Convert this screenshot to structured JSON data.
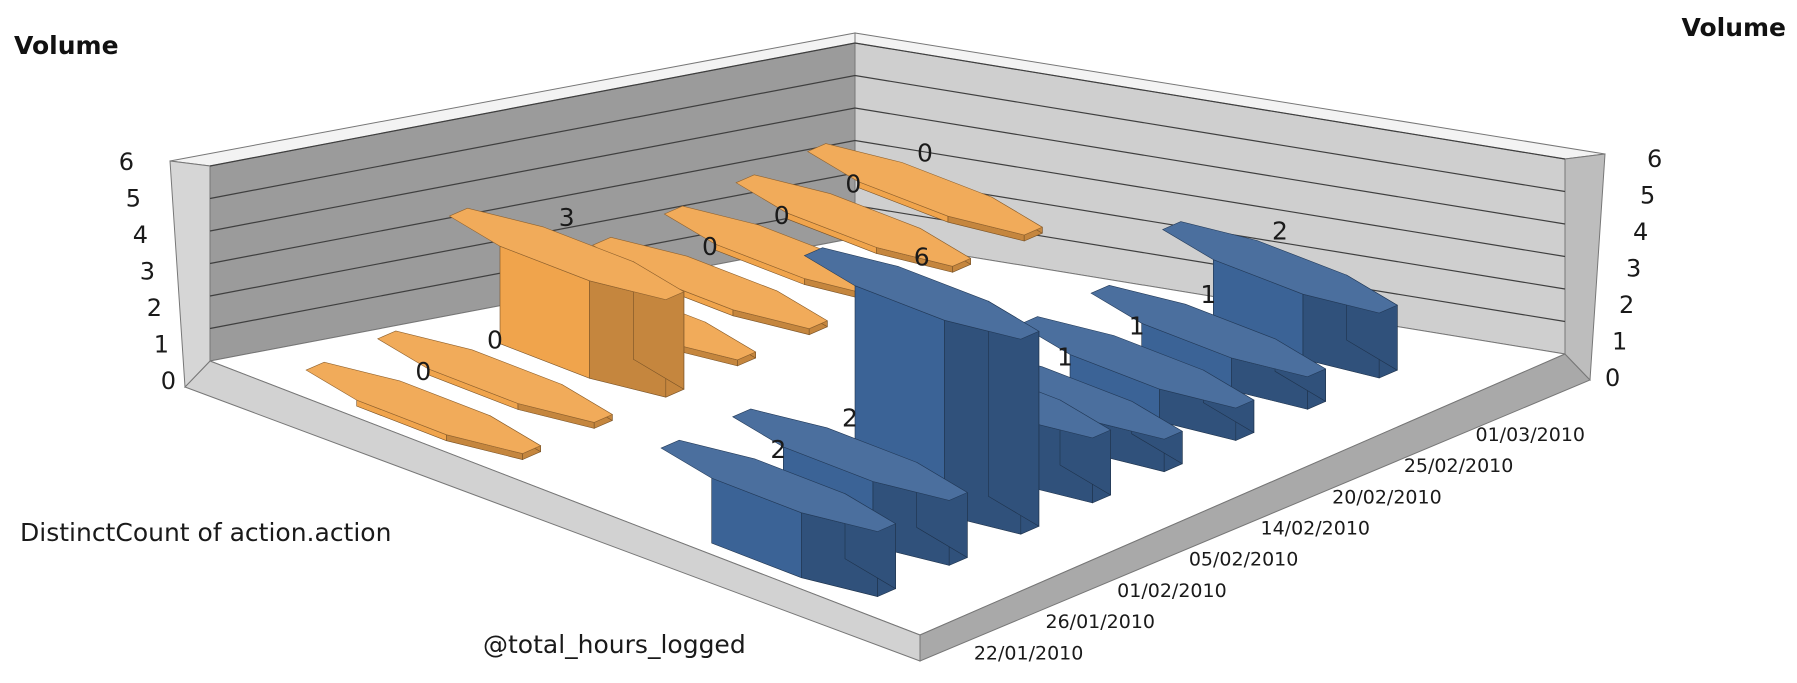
{
  "chart_data": {
    "type": "bar",
    "style": "3d-octagonal-cylinder",
    "title_left": "Volume",
    "title_right": "Volume",
    "zlim": [
      0,
      6
    ],
    "z_ticks": [
      "0",
      "1",
      "2",
      "3",
      "4",
      "5",
      "6"
    ],
    "categories": [
      "22/01/2010",
      "26/01/2010",
      "01/02/2010",
      "05/02/2010",
      "14/02/2010",
      "20/02/2010",
      "25/02/2010",
      "01/03/2010"
    ],
    "grid": true,
    "series": [
      {
        "name": "DistinctCount of action.action",
        "color": "#3b6396",
        "values": [
          2,
          2,
          6,
          2,
          1,
          1,
          1,
          2
        ]
      },
      {
        "name": "@total_hours_logged",
        "color": "#f0a44c",
        "values": [
          0,
          0,
          3,
          0,
          0,
          0,
          0,
          0
        ]
      }
    ]
  }
}
